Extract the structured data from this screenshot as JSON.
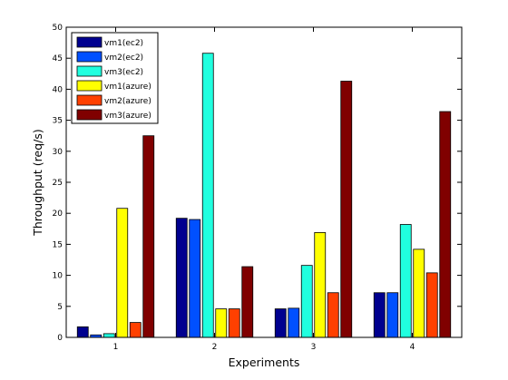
{
  "chart_data": {
    "type": "bar",
    "title": "",
    "xlabel": "Experiments",
    "ylabel": "Throughput (req/s)",
    "categories": [
      "1",
      "2",
      "3",
      "4"
    ],
    "ylim": [
      0,
      50
    ],
    "yticks": [
      0,
      5,
      10,
      15,
      20,
      25,
      30,
      35,
      40,
      45,
      50
    ],
    "grid": false,
    "legend_position": "top-left",
    "series": [
      {
        "name": "vm1(ec2)",
        "color": "#00008f",
        "values": [
          1.7,
          19.2,
          4.6,
          7.2
        ]
      },
      {
        "name": "vm2(ec2)",
        "color": "#0050ff",
        "values": [
          0.4,
          19.0,
          4.7,
          7.2
        ]
      },
      {
        "name": "vm3(ec2)",
        "color": "#20ffdf",
        "values": [
          0.6,
          45.8,
          11.6,
          18.2
        ]
      },
      {
        "name": "vm1(azure)",
        "color": "#ffff00",
        "values": [
          20.8,
          4.6,
          16.9,
          14.2
        ]
      },
      {
        "name": "vm2(azure)",
        "color": "#ff4000",
        "values": [
          2.4,
          4.6,
          7.2,
          10.4
        ]
      },
      {
        "name": "vm3(azure)",
        "color": "#800000",
        "values": [
          32.5,
          11.4,
          41.3,
          36.4
        ]
      }
    ]
  }
}
